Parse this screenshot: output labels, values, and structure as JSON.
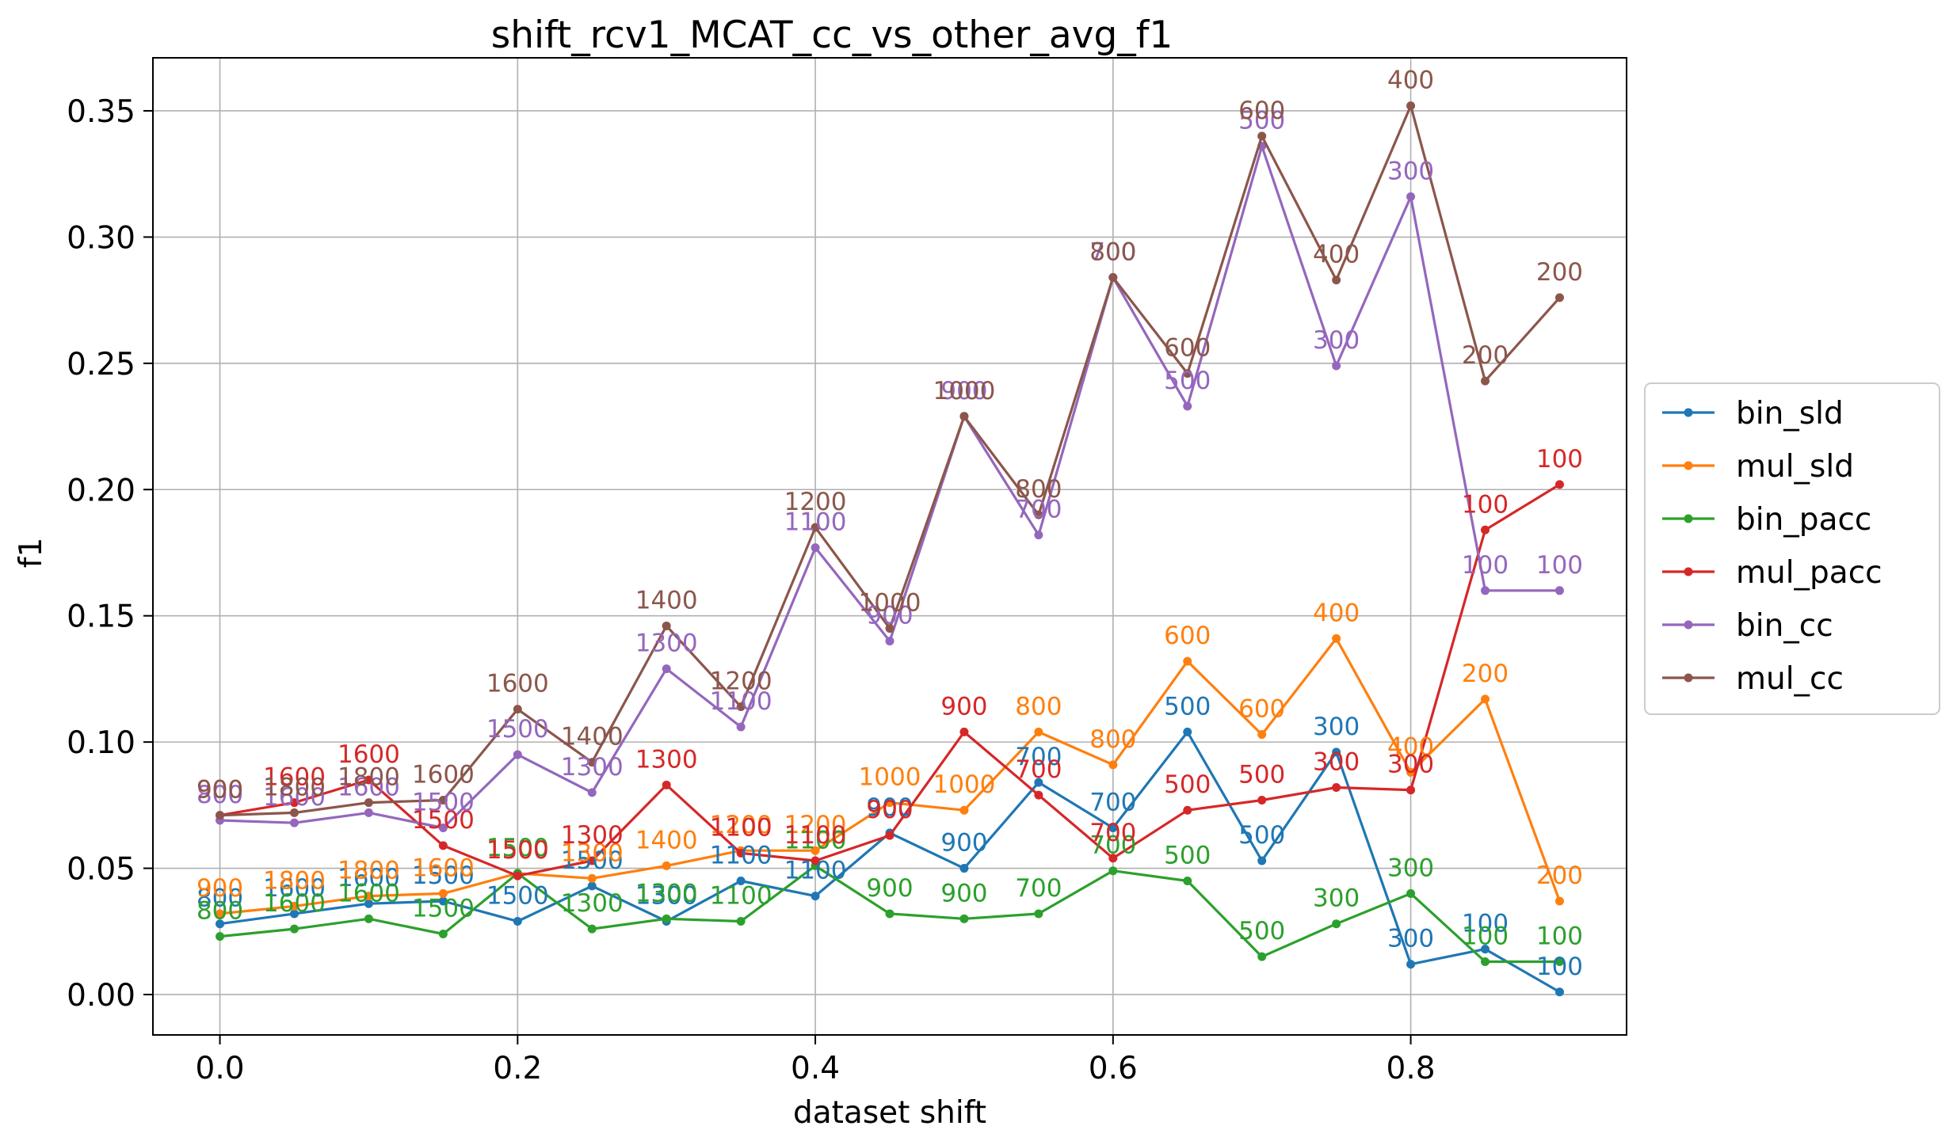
{
  "chart_data": {
    "type": "line",
    "title": "shift_rcv1_MCAT_cc_vs_other_avg_f1",
    "xlabel": "dataset shift",
    "ylabel": "f1",
    "xlim": [
      -0.045,
      0.945
    ],
    "ylim": [
      -0.016,
      0.371
    ],
    "xticks": [
      0.0,
      0.2,
      0.4,
      0.6,
      0.8
    ],
    "xtick_labels": [
      "0.0",
      "0.2",
      "0.4",
      "0.6",
      "0.8"
    ],
    "yticks": [
      0.0,
      0.05,
      0.1,
      0.15,
      0.2,
      0.25,
      0.3,
      0.35
    ],
    "ytick_labels": [
      "0.00",
      "0.05",
      "0.10",
      "0.15",
      "0.20",
      "0.25",
      "0.30",
      "0.35"
    ],
    "grid": true,
    "legend_position": "right, outside plot",
    "x": [
      0.0,
      0.05,
      0.1,
      0.15,
      0.2,
      0.25,
      0.3,
      0.35,
      0.4,
      0.45,
      0.5,
      0.55,
      0.6,
      0.65,
      0.7,
      0.75,
      0.8,
      0.85,
      0.9
    ],
    "series": [
      {
        "name": "bin_sld",
        "color": "#1f77b4",
        "values": [
          0.028,
          0.032,
          0.036,
          0.037,
          0.029,
          0.043,
          0.029,
          0.045,
          0.039,
          0.064,
          0.05,
          0.084,
          0.066,
          0.104,
          0.053,
          0.096,
          0.012,
          0.018,
          0.001
        ],
        "labels": [
          "800",
          "1600",
          "1600",
          "1500",
          "1500",
          "1500",
          "1300",
          "1100",
          "1100",
          "900",
          "900",
          "700",
          "700",
          "500",
          "500",
          "300",
          "300",
          "100",
          "100"
        ]
      },
      {
        "name": "mul_sld",
        "color": "#ff7f0e",
        "values": [
          0.032,
          0.035,
          0.039,
          0.04,
          0.048,
          0.046,
          0.051,
          0.057,
          0.057,
          0.076,
          0.073,
          0.104,
          0.091,
          0.132,
          0.103,
          0.141,
          0.088,
          0.117,
          0.037
        ],
        "labels": [
          "900",
          "1800",
          "1800",
          "1600",
          "1500",
          "1300",
          "1400",
          "1200",
          "1200",
          "1000",
          "1000",
          "800",
          "800",
          "600",
          "600",
          "400",
          "400",
          "200",
          "200"
        ]
      },
      {
        "name": "bin_pacc",
        "color": "#2ca02c",
        "values": [
          0.023,
          0.026,
          0.03,
          0.024,
          0.048,
          0.026,
          0.03,
          0.029,
          0.051,
          0.032,
          0.03,
          0.032,
          0.049,
          0.045,
          0.015,
          0.028,
          0.04,
          0.013,
          0.013
        ],
        "labels": [
          "800",
          "1600",
          "1600",
          "1500",
          "1500",
          "1300",
          "1300",
          "1100",
          "1100",
          "900",
          "900",
          "700",
          "700",
          "500",
          "500",
          "300",
          "300",
          "100",
          "100"
        ]
      },
      {
        "name": "mul_pacc",
        "color": "#d62728",
        "values": [
          0.071,
          0.076,
          0.085,
          0.059,
          0.047,
          0.053,
          0.083,
          0.056,
          0.053,
          0.063,
          0.104,
          0.079,
          0.054,
          0.073,
          0.077,
          0.082,
          0.081,
          0.184,
          0.202
        ],
        "labels": [
          "900",
          "1600",
          "1600",
          "1500",
          "1500",
          "1300",
          "1300",
          "1100",
          "1100",
          "900",
          "900",
          "700",
          "700",
          "500",
          "500",
          "300",
          "300",
          "100",
          "100"
        ]
      },
      {
        "name": "bin_cc",
        "color": "#9467bd",
        "values": [
          0.069,
          0.068,
          0.072,
          0.066,
          0.095,
          0.08,
          0.129,
          0.106,
          0.177,
          0.14,
          0.229,
          0.182,
          0.284,
          0.233,
          0.336,
          0.249,
          0.316,
          0.16,
          0.16
        ],
        "labels": [
          "800",
          "1600",
          "1600",
          "1500",
          "1500",
          "1300",
          "1300",
          "1100",
          "1100",
          "900",
          "900",
          "700",
          "700",
          "500",
          "500",
          "300",
          "300",
          "100",
          "100"
        ]
      },
      {
        "name": "mul_cc",
        "color": "#8c564b",
        "values": [
          0.071,
          0.072,
          0.076,
          0.077,
          0.113,
          0.092,
          0.146,
          0.114,
          0.185,
          0.145,
          0.229,
          0.19,
          0.284,
          0.246,
          0.34,
          0.283,
          0.352,
          0.243,
          0.276
        ],
        "labels": [
          "900",
          "1800",
          "1800",
          "1600",
          "1600",
          "1400",
          "1400",
          "1200",
          "1200",
          "1000",
          "1000",
          "800",
          "800",
          "600",
          "600",
          "400",
          "400",
          "200",
          "200"
        ]
      }
    ]
  }
}
